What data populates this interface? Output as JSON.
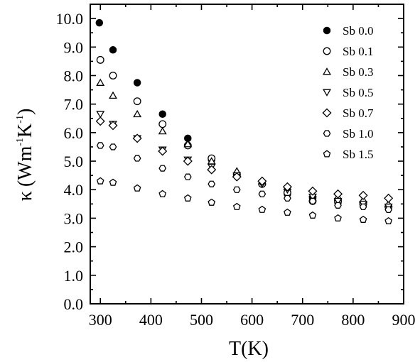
{
  "chart_data": {
    "type": "scatter",
    "xlabel": "T(K)",
    "ylabel": {
      "symbol": "κ",
      "open": "(",
      "unit": "Wm",
      "exp1": "-1",
      "unit2": "K",
      "exp2": "-1",
      "close": ")"
    },
    "xlim": [
      280,
      900
    ],
    "ylim": [
      0.0,
      10.5
    ],
    "xticks": [
      300,
      400,
      500,
      600,
      700,
      800,
      900
    ],
    "yticks": [
      0.0,
      1.0,
      2.0,
      3.0,
      4.0,
      5.0,
      6.0,
      7.0,
      8.0,
      9.0,
      10.0
    ],
    "ytick_labels": [
      "0.0",
      "1.0",
      "2.0",
      "3.0",
      "4.0",
      "5.0",
      "6.0",
      "7.0",
      "8.0",
      "9.0",
      "10.0"
    ],
    "grid": false,
    "legend": "top-right",
    "series": [
      {
        "name": "Sb 0.0",
        "marker": "filled-circle",
        "x": [
          298,
          325,
          373,
          423,
          473,
          520,
          620,
          670,
          720,
          770,
          820
        ],
        "y": [
          9.85,
          8.9,
          7.75,
          6.65,
          5.8,
          5.05,
          4.2,
          3.85,
          3.7,
          3.55,
          3.5
        ]
      },
      {
        "name": "Sb 0.1",
        "marker": "open-circle",
        "x": [
          300,
          325,
          373,
          423,
          473,
          520,
          570,
          620,
          670,
          720,
          770,
          820,
          870
        ],
        "y": [
          8.55,
          8.0,
          7.1,
          6.3,
          5.55,
          5.1,
          4.5,
          4.2,
          3.9,
          3.6,
          3.6,
          3.5,
          3.4
        ]
      },
      {
        "name": "Sb 0.3",
        "marker": "triangle-up",
        "x": [
          300,
          325,
          373,
          423,
          473,
          520,
          570,
          620,
          670,
          720,
          770,
          820,
          870
        ],
        "y": [
          7.75,
          7.3,
          6.65,
          6.05,
          5.6,
          5.0,
          4.65,
          4.3,
          4.1,
          3.85,
          3.75,
          3.65,
          3.5
        ]
      },
      {
        "name": "Sb 0.5",
        "marker": "triangle-down",
        "x": [
          300,
          325,
          373,
          423,
          473,
          520,
          570,
          620,
          670,
          720,
          770,
          820,
          870
        ],
        "y": [
          6.65,
          6.3,
          5.8,
          5.4,
          5.05,
          4.8,
          4.5,
          4.2,
          4.0,
          3.75,
          3.6,
          3.5,
          3.4
        ]
      },
      {
        "name": "Sb 0.7",
        "marker": "diamond",
        "x": [
          300,
          325,
          373,
          423,
          473,
          520,
          570,
          620,
          670,
          720,
          770,
          820,
          870
        ],
        "y": [
          6.4,
          6.25,
          5.8,
          5.35,
          5.0,
          4.7,
          4.45,
          4.3,
          4.1,
          3.95,
          3.85,
          3.8,
          3.7
        ]
      },
      {
        "name": "Sb 1.0",
        "marker": "hexagon",
        "x": [
          300,
          325,
          373,
          423,
          473,
          520,
          570,
          620,
          670,
          720,
          770,
          820,
          870
        ],
        "y": [
          5.55,
          5.5,
          5.1,
          4.75,
          4.45,
          4.2,
          4.0,
          3.85,
          3.7,
          3.6,
          3.45,
          3.4,
          3.3
        ]
      },
      {
        "name": "Sb 1.5",
        "marker": "pentagon",
        "x": [
          300,
          325,
          373,
          423,
          473,
          520,
          570,
          620,
          670,
          720,
          770,
          820,
          870
        ],
        "y": [
          4.3,
          4.25,
          4.05,
          3.85,
          3.7,
          3.55,
          3.4,
          3.3,
          3.2,
          3.1,
          3.0,
          2.95,
          2.9
        ]
      }
    ]
  }
}
